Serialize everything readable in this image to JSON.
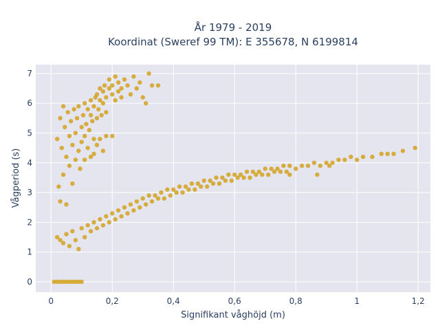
{
  "chart_data": {
    "type": "scatter",
    "title_line1": "År 1979 - 2019",
    "title_line2": "Koordinat (Sweref 99 TM): E 355678, N 6199814",
    "xlabel": "Signifikant våghöjd (m)",
    "ylabel": "Vågperiod (s)",
    "xlim": [
      -0.05,
      1.24
    ],
    "ylim": [
      -0.35,
      7.3
    ],
    "x_ticks": [
      0,
      0.2,
      0.4,
      0.6,
      0.8,
      1,
      1.2
    ],
    "x_tick_labels": [
      "0",
      "0,2",
      "0,4",
      "0,6",
      "0,8",
      "1",
      "1,2"
    ],
    "y_ticks": [
      0,
      1,
      2,
      3,
      4,
      5,
      6,
      7
    ],
    "y_tick_labels": [
      "0",
      "1",
      "2",
      "3",
      "4",
      "5",
      "6",
      "7"
    ],
    "grid": true,
    "marker_color": "#d4a21f",
    "background_color": "#e5e5ef",
    "points": [
      [
        0.02,
        4.8
      ],
      [
        0.025,
        3.2
      ],
      [
        0.03,
        5.5
      ],
      [
        0.03,
        2.7
      ],
      [
        0.035,
        4.5
      ],
      [
        0.04,
        5.9
      ],
      [
        0.04,
        3.6
      ],
      [
        0.045,
        5.2
      ],
      [
        0.05,
        4.2
      ],
      [
        0.05,
        2.6
      ],
      [
        0.055,
        5.7
      ],
      [
        0.06,
        3.9
      ],
      [
        0.06,
        4.9
      ],
      [
        0.065,
        5.4
      ],
      [
        0.07,
        4.6
      ],
      [
        0.07,
        3.3
      ],
      [
        0.075,
        5.8
      ],
      [
        0.08,
        4.1
      ],
      [
        0.08,
        5.0
      ],
      [
        0.085,
        5.5
      ],
      [
        0.09,
        4.4
      ],
      [
        0.09,
        5.9
      ],
      [
        0.095,
        3.8
      ],
      [
        0.1,
        5.2
      ],
      [
        0.1,
        4.7
      ],
      [
        0.105,
        5.6
      ],
      [
        0.11,
        4.9
      ],
      [
        0.11,
        6.0
      ],
      [
        0.115,
        5.3
      ],
      [
        0.12,
        4.5
      ],
      [
        0.12,
        5.8
      ],
      [
        0.125,
        5.1
      ],
      [
        0.13,
        5.6
      ],
      [
        0.13,
        6.1
      ],
      [
        0.135,
        5.4
      ],
      [
        0.14,
        5.9
      ],
      [
        0.14,
        4.8
      ],
      [
        0.145,
        6.2
      ],
      [
        0.15,
        5.5
      ],
      [
        0.15,
        6.3
      ],
      [
        0.155,
        5.8
      ],
      [
        0.16,
        6.1
      ],
      [
        0.16,
        6.5
      ],
      [
        0.165,
        5.6
      ],
      [
        0.17,
        6.4
      ],
      [
        0.17,
        6.0
      ],
      [
        0.175,
        6.6
      ],
      [
        0.18,
        6.2
      ],
      [
        0.18,
        5.7
      ],
      [
        0.19,
        6.5
      ],
      [
        0.19,
        6.8
      ],
      [
        0.2,
        6.3
      ],
      [
        0.2,
        6.6
      ],
      [
        0.21,
        6.1
      ],
      [
        0.21,
        6.9
      ],
      [
        0.22,
        6.4
      ],
      [
        0.22,
        6.7
      ],
      [
        0.23,
        6.2
      ],
      [
        0.23,
        6.5
      ],
      [
        0.24,
        6.8
      ],
      [
        0.25,
        6.6
      ],
      [
        0.26,
        6.3
      ],
      [
        0.27,
        6.9
      ],
      [
        0.28,
        6.5
      ],
      [
        0.29,
        6.7
      ],
      [
        0.3,
        6.2
      ],
      [
        0.31,
        6.0
      ],
      [
        0.32,
        7.0
      ],
      [
        0.33,
        6.6
      ],
      [
        0.35,
        6.6
      ],
      [
        0.16,
        4.8
      ],
      [
        0.17,
        4.4
      ],
      [
        0.18,
        4.9
      ],
      [
        0.14,
        4.3
      ],
      [
        0.15,
        4.6
      ],
      [
        0.13,
        4.2
      ],
      [
        0.11,
        4.1
      ],
      [
        0.2,
        4.9
      ],
      [
        0.02,
        1.5
      ],
      [
        0.03,
        1.4
      ],
      [
        0.04,
        1.3
      ],
      [
        0.05,
        1.6
      ],
      [
        0.06,
        1.2
      ],
      [
        0.07,
        1.7
      ],
      [
        0.08,
        1.4
      ],
      [
        0.09,
        1.1
      ],
      [
        0.1,
        1.8
      ],
      [
        0.11,
        1.5
      ],
      [
        0.12,
        1.9
      ],
      [
        0.13,
        1.7
      ],
      [
        0.14,
        2.0
      ],
      [
        0.15,
        1.8
      ],
      [
        0.16,
        2.1
      ],
      [
        0.17,
        1.9
      ],
      [
        0.18,
        2.2
      ],
      [
        0.19,
        2.0
      ],
      [
        0.2,
        2.3
      ],
      [
        0.21,
        2.1
      ],
      [
        0.22,
        2.4
      ],
      [
        0.23,
        2.2
      ],
      [
        0.24,
        2.5
      ],
      [
        0.25,
        2.3
      ],
      [
        0.26,
        2.6
      ],
      [
        0.27,
        2.4
      ],
      [
        0.28,
        2.7
      ],
      [
        0.29,
        2.5
      ],
      [
        0.3,
        2.8
      ],
      [
        0.31,
        2.6
      ],
      [
        0.32,
        2.9
      ],
      [
        0.33,
        2.7
      ],
      [
        0.34,
        2.9
      ],
      [
        0.35,
        2.8
      ],
      [
        0.36,
        3.0
      ],
      [
        0.37,
        2.8
      ],
      [
        0.38,
        3.1
      ],
      [
        0.39,
        2.9
      ],
      [
        0.4,
        3.1
      ],
      [
        0.41,
        3.0
      ],
      [
        0.42,
        3.2
      ],
      [
        0.43,
        3.0
      ],
      [
        0.44,
        3.2
      ],
      [
        0.45,
        3.1
      ],
      [
        0.46,
        3.3
      ],
      [
        0.47,
        3.1
      ],
      [
        0.48,
        3.3
      ],
      [
        0.49,
        3.2
      ],
      [
        0.5,
        3.4
      ],
      [
        0.51,
        3.2
      ],
      [
        0.52,
        3.4
      ],
      [
        0.53,
        3.3
      ],
      [
        0.54,
        3.5
      ],
      [
        0.55,
        3.3
      ],
      [
        0.56,
        3.5
      ],
      [
        0.57,
        3.4
      ],
      [
        0.58,
        3.6
      ],
      [
        0.59,
        3.4
      ],
      [
        0.6,
        3.6
      ],
      [
        0.61,
        3.5
      ],
      [
        0.62,
        3.6
      ],
      [
        0.63,
        3.5
      ],
      [
        0.64,
        3.7
      ],
      [
        0.65,
        3.5
      ],
      [
        0.66,
        3.7
      ],
      [
        0.67,
        3.6
      ],
      [
        0.68,
        3.7
      ],
      [
        0.69,
        3.6
      ],
      [
        0.7,
        3.8
      ],
      [
        0.71,
        3.6
      ],
      [
        0.72,
        3.8
      ],
      [
        0.73,
        3.7
      ],
      [
        0.74,
        3.8
      ],
      [
        0.75,
        3.7
      ],
      [
        0.76,
        3.9
      ],
      [
        0.77,
        3.7
      ],
      [
        0.78,
        3.9
      ],
      [
        0.8,
        3.8
      ],
      [
        0.82,
        3.9
      ],
      [
        0.84,
        3.9
      ],
      [
        0.86,
        4.0
      ],
      [
        0.88,
        3.9
      ],
      [
        0.9,
        4.0
      ],
      [
        0.92,
        4.0
      ],
      [
        0.94,
        4.1
      ],
      [
        0.96,
        4.1
      ],
      [
        0.98,
        4.2
      ],
      [
        1.0,
        4.1
      ],
      [
        1.02,
        4.2
      ],
      [
        1.05,
        4.2
      ],
      [
        1.08,
        4.3
      ],
      [
        1.1,
        4.3
      ],
      [
        1.12,
        4.3
      ],
      [
        1.15,
        4.4
      ],
      [
        1.19,
        4.5
      ],
      [
        0.87,
        3.6
      ],
      [
        0.91,
        3.9
      ],
      [
        0.78,
        3.6
      ],
      [
        0.01,
        0.0
      ],
      [
        0.02,
        0.0
      ],
      [
        0.03,
        0.0
      ],
      [
        0.04,
        0.0
      ],
      [
        0.05,
        0.0
      ],
      [
        0.06,
        0.0
      ],
      [
        0.07,
        0.0
      ],
      [
        0.08,
        0.0
      ],
      [
        0.09,
        0.0
      ],
      [
        0.1,
        0.0
      ]
    ]
  }
}
